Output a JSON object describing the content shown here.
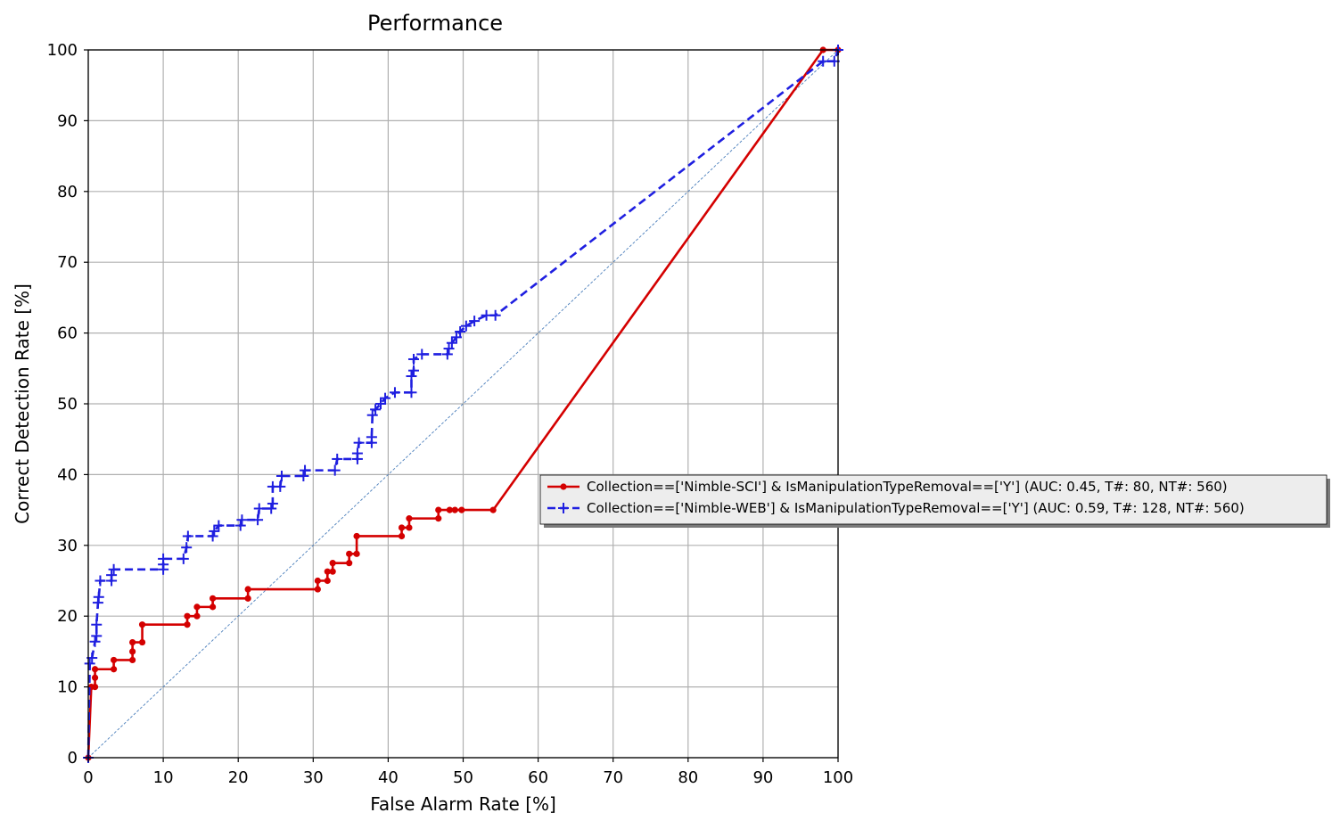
{
  "chart_data": {
    "type": "line",
    "title": "Performance",
    "xlabel": "False Alarm Rate [%]",
    "ylabel": "Correct Detection Rate [%]",
    "xlim": [
      0,
      100
    ],
    "ylim": [
      0,
      100
    ],
    "xticks": [
      "0",
      "10",
      "20",
      "30",
      "40",
      "50",
      "60",
      "70",
      "80",
      "90",
      "100"
    ],
    "yticks": [
      "0",
      "10",
      "20",
      "30",
      "40",
      "50",
      "60",
      "70",
      "80",
      "90",
      "100"
    ],
    "grid": true,
    "legend_position": "right",
    "diagonal": {
      "color": "#4a7ebb",
      "style": "dashed"
    },
    "series": [
      {
        "name": "Collection==['Nimble-SCI'] & IsManipulationTypeRemoval==['Y'] (AUC: 0.45, T#: 80, NT#: 560)",
        "color": "#d40000",
        "line_style": "solid",
        "marker": "dot",
        "points": [
          [
            0,
            0
          ],
          [
            0.4,
            10
          ],
          [
            0.9,
            10
          ],
          [
            0.9,
            11.3
          ],
          [
            0.9,
            12.5
          ],
          [
            3.4,
            12.5
          ],
          [
            3.4,
            13.8
          ],
          [
            5.9,
            13.8
          ],
          [
            5.9,
            15
          ],
          [
            5.9,
            16.3
          ],
          [
            7.2,
            16.3
          ],
          [
            7.2,
            18.8
          ],
          [
            13.2,
            18.8
          ],
          [
            13.2,
            20
          ],
          [
            14.5,
            20
          ],
          [
            14.5,
            21.3
          ],
          [
            16.6,
            21.3
          ],
          [
            16.6,
            22.5
          ],
          [
            21.3,
            22.5
          ],
          [
            21.3,
            23.8
          ],
          [
            30.6,
            23.8
          ],
          [
            30.6,
            25
          ],
          [
            31.9,
            25
          ],
          [
            31.9,
            26.3
          ],
          [
            32.6,
            26.3
          ],
          [
            32.6,
            27.5
          ],
          [
            34.8,
            27.5
          ],
          [
            34.8,
            28.8
          ],
          [
            35.8,
            28.8
          ],
          [
            35.8,
            31.3
          ],
          [
            41.8,
            31.3
          ],
          [
            41.8,
            32.5
          ],
          [
            42.8,
            32.5
          ],
          [
            42.8,
            33.8
          ],
          [
            46.7,
            33.8
          ],
          [
            46.7,
            35
          ],
          [
            48.2,
            35
          ],
          [
            48.9,
            35
          ],
          [
            49.8,
            35
          ],
          [
            54,
            35
          ],
          [
            98,
            100
          ],
          [
            100,
            100
          ]
        ]
      },
      {
        "name": "Collection==['Nimble-WEB'] & IsManipulationTypeRemoval==['Y'] (AUC: 0.59, T#: 128, NT#: 560)",
        "color": "#1f1fe0",
        "line_style": "dashed",
        "marker": "plus",
        "points": [
          [
            0,
            0
          ],
          [
            0.2,
            13.3
          ],
          [
            0.5,
            14.1
          ],
          [
            0.9,
            16.4
          ],
          [
            1.1,
            17.2
          ],
          [
            1.1,
            18.8
          ],
          [
            1.3,
            21.9
          ],
          [
            1.4,
            22.7
          ],
          [
            1.6,
            25
          ],
          [
            3.1,
            25
          ],
          [
            3.1,
            25.8
          ],
          [
            3.4,
            26.6
          ],
          [
            10,
            26.6
          ],
          [
            10,
            27.3
          ],
          [
            10,
            28.1
          ],
          [
            12.7,
            28.1
          ],
          [
            13.1,
            29.7
          ],
          [
            13.3,
            31.3
          ],
          [
            16.6,
            31.3
          ],
          [
            16.8,
            32
          ],
          [
            17.4,
            32.8
          ],
          [
            20.3,
            32.8
          ],
          [
            20.5,
            33.6
          ],
          [
            22.6,
            33.6
          ],
          [
            22.8,
            35.2
          ],
          [
            24.4,
            35.2
          ],
          [
            24.6,
            35.9
          ],
          [
            24.6,
            38.3
          ],
          [
            25.6,
            38.3
          ],
          [
            25.8,
            39.8
          ],
          [
            28.7,
            39.8
          ],
          [
            28.9,
            40.6
          ],
          [
            32.9,
            40.6
          ],
          [
            33.2,
            42.2
          ],
          [
            35.9,
            42.2
          ],
          [
            35.9,
            43
          ],
          [
            36.1,
            44.5
          ],
          [
            37.8,
            44.5
          ],
          [
            37.8,
            45.3
          ],
          [
            37.9,
            48.4
          ],
          [
            38.3,
            49.2
          ],
          [
            39,
            50
          ],
          [
            39.6,
            50.8
          ],
          [
            40.9,
            51.6
          ],
          [
            43.1,
            51.6
          ],
          [
            43.1,
            53.9
          ],
          [
            43.4,
            54.7
          ],
          [
            43.4,
            56.3
          ],
          [
            44.5,
            57
          ],
          [
            47.9,
            57
          ],
          [
            48.1,
            57.8
          ],
          [
            48.5,
            58.6
          ],
          [
            49.1,
            59.4
          ],
          [
            49.6,
            60.2
          ],
          [
            50.4,
            61
          ],
          [
            51.5,
            61.7
          ],
          [
            53.1,
            62.5
          ],
          [
            54.3,
            62.5
          ],
          [
            98,
            98.4
          ],
          [
            99.5,
            98.4
          ],
          [
            100,
            100
          ]
        ]
      }
    ]
  }
}
